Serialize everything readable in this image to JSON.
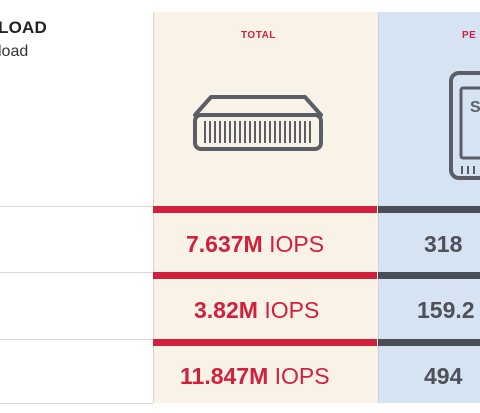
{
  "header": {
    "title": "LOAD",
    "subtitle": "load"
  },
  "columns": {
    "total_label": "TOTAL",
    "per_label": "PE"
  },
  "rows": [
    {
      "total_value": "7.637M",
      "total_unit": "IOPS",
      "per_value": "318"
    },
    {
      "total_value": "3.82M",
      "total_unit": "IOPS",
      "per_value": "159.2"
    },
    {
      "total_value": "11.847M",
      "total_unit": "IOPS",
      "per_value": "494"
    }
  ],
  "icons": {
    "server": "server-appliance-icon",
    "ssd": "ssd-drive-icon"
  },
  "colors": {
    "accent_red": "#d21f3c",
    "dark_bar": "#4a4d55",
    "total_bg": "#f8f3e6",
    "per_bg": "#d6e3f3"
  }
}
